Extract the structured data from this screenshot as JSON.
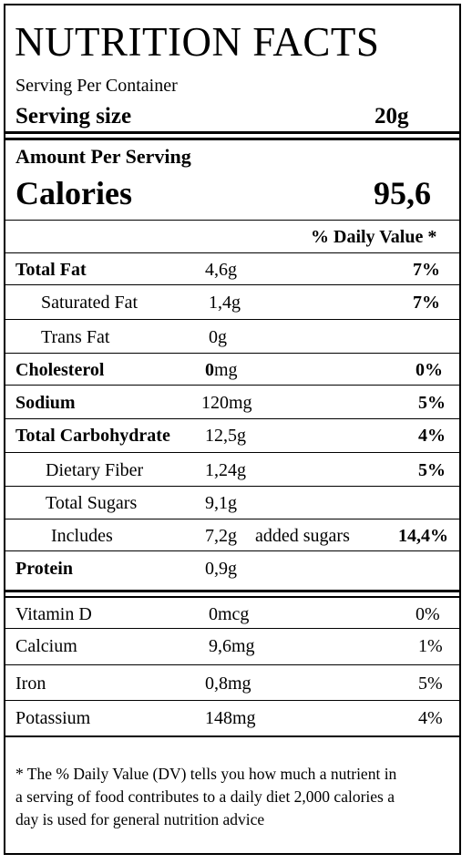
{
  "title": "NUTRITION FACTS",
  "serving": {
    "per_container_label": "Serving Per Container",
    "size_label": "Serving size",
    "size_value": "20g"
  },
  "amount_per_serving_label": "Amount Per Serving",
  "calories": {
    "label": "Calories",
    "value": "95,6"
  },
  "daily_value_header": "% Daily Value *",
  "nutrients": [
    {
      "name": "Total Fat",
      "amount": "4,6g",
      "dv": "7%"
    },
    {
      "name": "Saturated Fat",
      "amount": "1,4g",
      "dv": "7%"
    },
    {
      "name": "Trans Fat",
      "amount": "0g",
      "dv": ""
    },
    {
      "name": "Cholesterol",
      "amount_bold": "0",
      "amount_unit": "mg",
      "dv": "0%"
    },
    {
      "name": "Sodium",
      "amount": "120mg",
      "dv": "5%"
    },
    {
      "name": "Total Carbohydrate",
      "amount": "12,5g",
      "dv": "4%"
    },
    {
      "name": "Dietary Fiber",
      "amount": "1,24g",
      "dv": "5%"
    },
    {
      "name": "Total Sugars",
      "amount": "9,1g",
      "dv": ""
    },
    {
      "name": "Includes",
      "amount": "7,2g",
      "extra": "added sugars",
      "dv": "14,4%"
    },
    {
      "name": "Protein",
      "amount": "0,9g",
      "dv": ""
    }
  ],
  "vitamins": [
    {
      "name": "Vitamin D",
      "amount": "0mcg",
      "dv": "0%"
    },
    {
      "name": "Calcium",
      "amount": "9,6mg",
      "dv": "1%"
    },
    {
      "name": "Iron",
      "amount": "0,8mg",
      "dv": "5%"
    },
    {
      "name": "Potassium",
      "amount": "148mg",
      "dv": "4%"
    }
  ],
  "footnote": {
    "line1": "* The % Daily Value (DV) tells you how much a nutrient in",
    "line2": "a serving of food contributes to a daily diet 2,000 calories a",
    "line3": "day is used for general nutrition advice"
  }
}
